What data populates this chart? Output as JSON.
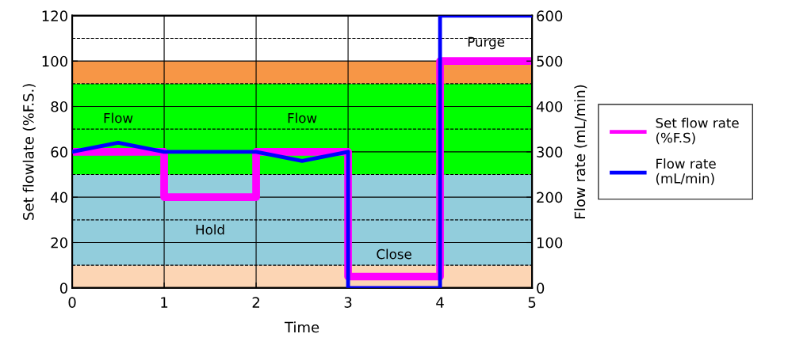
{
  "chart_data": {
    "type": "line",
    "xlabel": "Time",
    "ylabel": "Set flowlate (%F.S.)",
    "y2label": "Flow rate (mL/min)",
    "xlim": [
      0,
      5
    ],
    "xticks": [
      0,
      1,
      2,
      3,
      4,
      5
    ],
    "ylim": [
      0,
      120
    ],
    "yticks": [
      0,
      20,
      40,
      60,
      80,
      100,
      120
    ],
    "y2lim": [
      0,
      600
    ],
    "y2ticks": [
      0,
      100,
      200,
      300,
      400,
      500,
      600
    ],
    "grid": true,
    "legend": "right",
    "line_style": "solid",
    "marker": "none",
    "series": [
      {
        "name": "Set flow rate\n(%F.S)",
        "color": "#ff00ff",
        "x": [
          0,
          1,
          1,
          2,
          2,
          3,
          3,
          4,
          4,
          5
        ],
        "values": [
          60,
          60,
          40,
          40,
          60,
          60,
          5,
          5,
          100,
          100
        ]
      },
      {
        "name": "Flow rate\n(mL/min)",
        "color": "#0000ff",
        "axis": "y2",
        "x": [
          0,
          0.5,
          1,
          2,
          2.5,
          3,
          3,
          4,
          4,
          5
        ],
        "values": [
          300,
          320,
          300,
          300,
          280,
          300,
          0,
          0,
          600,
          600
        ]
      }
    ],
    "bands": [
      {
        "axis": "y",
        "from": 0,
        "to": 10,
        "color": "#fcd5b4"
      },
      {
        "axis": "y",
        "from": 10,
        "to": 50,
        "color": "#92cddc"
      },
      {
        "axis": "y",
        "from": 50,
        "to": 90,
        "color": "#00ff00"
      },
      {
        "axis": "y",
        "from": 90,
        "to": 100,
        "color": "#f79646"
      }
    ],
    "ref_lines": [
      {
        "axis": "y",
        "value": 10,
        "line_style": "dashed",
        "color": "#000000"
      },
      {
        "axis": "y",
        "value": 30,
        "line_style": "dashed",
        "color": "#000000"
      },
      {
        "axis": "y",
        "value": 50,
        "line_style": "dashed",
        "color": "#000000"
      },
      {
        "axis": "y",
        "value": 70,
        "line_style": "dashed",
        "color": "#000000"
      },
      {
        "axis": "y",
        "value": 90,
        "line_style": "dashed",
        "color": "#000000"
      },
      {
        "axis": "y",
        "value": 110,
        "line_style": "dashed",
        "color": "#000000"
      }
    ],
    "annotations": [
      "Flow",
      "Flow",
      "Hold",
      "Close",
      "Purge"
    ]
  }
}
